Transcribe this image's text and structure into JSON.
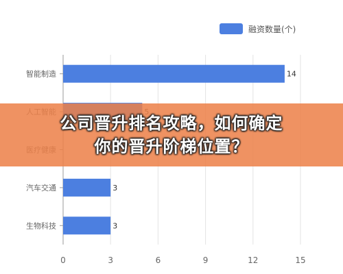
{
  "chart_data": {
    "type": "bar",
    "orientation": "horizontal",
    "categories": [
      "智能制造",
      "人工智能",
      "医疗健康",
      "汽车交通",
      "生物科技"
    ],
    "series": [
      {
        "name": "融资数量(个)",
        "values": [
          14,
          5,
          null,
          3,
          3
        ],
        "color": "#4c7fe0"
      }
    ],
    "xlim": [
      0,
      15
    ],
    "xticks": [
      0,
      3,
      6,
      9,
      12,
      15
    ],
    "grid": true,
    "legend": "top-right"
  },
  "overlay": {
    "line1": "公司晋升排名攻略，如何确定",
    "line2": "你的晋升阶梯位置？",
    "color": "#ec8048"
  }
}
